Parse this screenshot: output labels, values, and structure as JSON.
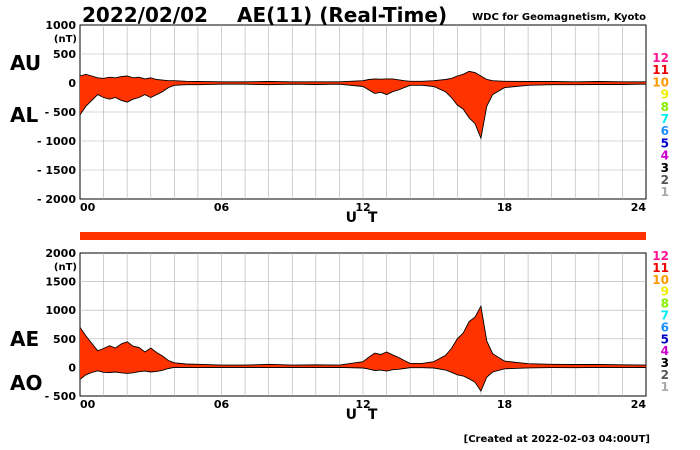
{
  "header": {
    "date": "2022/02/02",
    "title": "AE(11) (Real-Time)",
    "source": "WDC for Geomagnetism, Kyoto"
  },
  "footer": {
    "created": "[Created at 2022-02-03 04:00UT]"
  },
  "colors": {
    "fill": "#ff3300",
    "line": "#000000",
    "grid": "#b0b0b0",
    "coverage": "#ff3300"
  },
  "legend": {
    "numbers": [
      "12",
      "11",
      "10",
      "9",
      "8",
      "7",
      "6",
      "5",
      "4",
      "3",
      "2",
      "1"
    ],
    "colors": [
      "#ff1493",
      "#ee0000",
      "#ff9900",
      "#eeee00",
      "#88ee00",
      "#00eeee",
      "#1e90ff",
      "#0000cc",
      "#cc00cc",
      "#000000",
      "#555555",
      "#aaaaaa"
    ]
  },
  "chart_data": [
    {
      "type": "area",
      "panel": "top",
      "unit": "(nT)",
      "labels_left": [
        "AU",
        "AL"
      ],
      "xlabel": "U T",
      "xlim": [
        0,
        24
      ],
      "ylim": [
        -2000,
        1000
      ],
      "yticks": [
        1000,
        500,
        0,
        -500,
        -1000,
        -1500,
        -2000
      ],
      "ytick_labels": [
        "1000",
        "500",
        "0",
        "- 500",
        "- 1000",
        "- 1500",
        "- 2000"
      ],
      "xticks": [
        0,
        6,
        12,
        18,
        24
      ],
      "xtick_labels": [
        "00",
        "06",
        "12",
        "18",
        "24"
      ],
      "grid": true,
      "series": [
        {
          "name": "AU",
          "x": [
            0,
            0.25,
            0.5,
            0.75,
            1,
            1.25,
            1.5,
            1.75,
            2,
            2.25,
            2.5,
            2.75,
            3,
            3.25,
            3.5,
            3.75,
            4,
            4.5,
            5,
            6,
            7,
            8,
            9,
            10,
            11,
            12,
            12.25,
            12.5,
            12.75,
            13,
            13.25,
            13.5,
            13.75,
            14,
            14.5,
            15,
            15.5,
            15.75,
            16,
            16.25,
            16.5,
            16.75,
            17,
            17.25,
            17.5,
            18,
            19,
            20,
            21,
            22,
            23,
            24
          ],
          "y": [
            120,
            150,
            120,
            90,
            80,
            100,
            90,
            110,
            120,
            90,
            100,
            70,
            90,
            60,
            50,
            40,
            40,
            30,
            25,
            20,
            20,
            25,
            20,
            20,
            20,
            40,
            60,
            70,
            65,
            70,
            70,
            55,
            40,
            30,
            30,
            40,
            60,
            80,
            120,
            150,
            200,
            180,
            120,
            60,
            40,
            30,
            25,
            25,
            20,
            25,
            20,
            20
          ]
        },
        {
          "name": "AL",
          "x": [
            0,
            0.25,
            0.5,
            0.75,
            1,
            1.25,
            1.5,
            1.75,
            2,
            2.25,
            2.5,
            2.75,
            3,
            3.25,
            3.5,
            3.75,
            4,
            4.5,
            5,
            6,
            7,
            8,
            9,
            10,
            11,
            12,
            12.25,
            12.5,
            12.75,
            13,
            13.25,
            13.5,
            13.75,
            14,
            14.5,
            15,
            15.5,
            15.75,
            16,
            16.25,
            16.5,
            16.75,
            17,
            17.25,
            17.5,
            18,
            19,
            20,
            21,
            22,
            23,
            24
          ],
          "y": [
            -550,
            -400,
            -300,
            -200,
            -250,
            -280,
            -250,
            -300,
            -330,
            -280,
            -250,
            -200,
            -250,
            -200,
            -150,
            -80,
            -40,
            -30,
            -30,
            -20,
            -20,
            -30,
            -20,
            -25,
            -20,
            -60,
            -120,
            -180,
            -160,
            -200,
            -150,
            -120,
            -80,
            -40,
            -40,
            -60,
            -150,
            -250,
            -380,
            -450,
            -600,
            -700,
            -950,
            -400,
            -200,
            -80,
            -40,
            -30,
            -30,
            -25,
            -25,
            -20
          ]
        }
      ]
    },
    {
      "type": "area",
      "panel": "bottom",
      "unit": "(nT)",
      "labels_left": [
        "AE",
        "AO"
      ],
      "xlabel": "U T",
      "xlim": [
        0,
        24
      ],
      "ylim": [
        -500,
        2000
      ],
      "yticks": [
        2000,
        1500,
        1000,
        500,
        0,
        -500
      ],
      "ytick_labels": [
        "2000",
        "1500",
        "1000",
        "500",
        "0",
        "- 500"
      ],
      "xticks": [
        0,
        6,
        12,
        18,
        24
      ],
      "xtick_labels": [
        "00",
        "06",
        "12",
        "18",
        "24"
      ],
      "grid": true,
      "series": [
        {
          "name": "AE",
          "x": [
            0,
            0.25,
            0.5,
            0.75,
            1,
            1.25,
            1.5,
            1.75,
            2,
            2.25,
            2.5,
            2.75,
            3,
            3.25,
            3.5,
            3.75,
            4,
            4.5,
            5,
            6,
            7,
            8,
            9,
            10,
            11,
            12,
            12.25,
            12.5,
            12.75,
            13,
            13.25,
            13.5,
            13.75,
            14,
            14.5,
            15,
            15.5,
            15.75,
            16,
            16.25,
            16.5,
            16.75,
            17,
            17.25,
            17.5,
            18,
            19,
            20,
            21,
            22,
            23,
            24
          ],
          "y": [
            700,
            550,
            420,
            290,
            330,
            380,
            340,
            410,
            450,
            370,
            350,
            270,
            340,
            260,
            200,
            120,
            80,
            60,
            55,
            40,
            40,
            55,
            40,
            45,
            40,
            100,
            180,
            250,
            225,
            270,
            220,
            175,
            120,
            70,
            70,
            100,
            210,
            330,
            500,
            600,
            800,
            880,
            1070,
            460,
            240,
            110,
            65,
            55,
            50,
            50,
            45,
            40
          ]
        },
        {
          "name": "AO",
          "x": [
            0,
            0.25,
            0.5,
            0.75,
            1,
            1.25,
            1.5,
            1.75,
            2,
            2.25,
            2.5,
            2.75,
            3,
            3.25,
            3.5,
            3.75,
            4,
            4.5,
            5,
            6,
            7,
            8,
            9,
            10,
            11,
            12,
            12.25,
            12.5,
            12.75,
            13,
            13.25,
            13.5,
            13.75,
            14,
            14.5,
            15,
            15.5,
            15.75,
            16,
            16.25,
            16.5,
            16.75,
            17,
            17.25,
            17.5,
            18,
            19,
            20,
            21,
            22,
            23,
            24
          ],
          "y": [
            -210,
            -130,
            -90,
            -60,
            -85,
            -90,
            -80,
            -95,
            -105,
            -95,
            -75,
            -65,
            -80,
            -70,
            -50,
            -20,
            0,
            0,
            -3,
            0,
            0,
            -3,
            0,
            -3,
            0,
            -10,
            -30,
            -55,
            -48,
            -65,
            -40,
            -33,
            -20,
            -5,
            -5,
            -10,
            -45,
            -85,
            -130,
            -150,
            -200,
            -260,
            -415,
            -170,
            -80,
            -25,
            -8,
            -3,
            -5,
            0,
            -3,
            0
          ]
        }
      ]
    }
  ]
}
